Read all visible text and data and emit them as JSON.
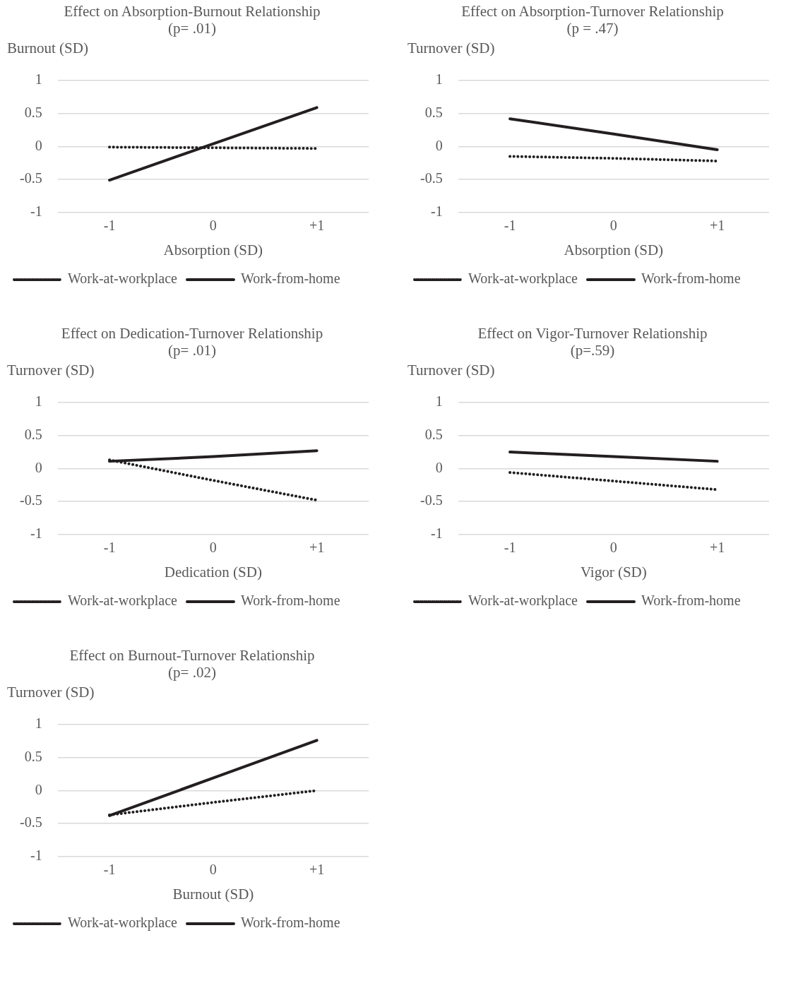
{
  "chart_data": [
    {
      "type": "line",
      "title": "Effect on Absorption-Burnout Relationship",
      "subtitle": "(p= .01)",
      "ylabel": "Burnout (SD)",
      "xlabel": "Absorption (SD)",
      "categories": [
        "-1",
        "0",
        "+1"
      ],
      "ylim": [
        -1,
        1
      ],
      "yticks": [
        -1,
        -0.5,
        0,
        0.5,
        1
      ],
      "grid": "y",
      "legend": "bottom",
      "marker": "none",
      "series": [
        {
          "name": "Work-at-workplace",
          "color": "#231f20",
          "line_style": "dotted",
          "values": [
            -0.01,
            -0.02,
            -0.03
          ]
        },
        {
          "name": "Work-from-home",
          "color": "#231f20",
          "line_style": "solid",
          "values": [
            -0.51,
            0.04,
            0.59
          ]
        }
      ]
    },
    {
      "type": "line",
      "title": "Effect on Absorption-Turnover Relationship",
      "subtitle": "(p = .47)",
      "ylabel": "Turnover (SD)",
      "xlabel": "Absorption (SD)",
      "categories": [
        "-1",
        "0",
        "+1"
      ],
      "ylim": [
        -1,
        1
      ],
      "yticks": [
        -1,
        -0.5,
        0,
        0.5,
        1
      ],
      "grid": "y",
      "legend": "bottom",
      "marker": "none",
      "series": [
        {
          "name": "Work-at-workplace",
          "color": "#231f20",
          "line_style": "dotted",
          "values": [
            -0.15,
            -0.18,
            -0.22
          ]
        },
        {
          "name": "Work-from-home",
          "color": "#231f20",
          "line_style": "solid",
          "values": [
            0.42,
            0.19,
            -0.05
          ]
        }
      ]
    },
    {
      "type": "line",
      "title": "Effect on Dedication-Turnover Relationship",
      "subtitle": "(p= .01)",
      "ylabel": "Turnover (SD)",
      "xlabel": "Dedication (SD)",
      "categories": [
        "-1",
        "0",
        "+1"
      ],
      "ylim": [
        -1,
        1
      ],
      "yticks": [
        -1,
        -0.5,
        0,
        0.5,
        1
      ],
      "grid": "y",
      "legend": "bottom",
      "marker": "none",
      "series": [
        {
          "name": "Work-at-workplace",
          "color": "#231f20",
          "line_style": "dotted",
          "values": [
            0.13,
            -0.18,
            -0.48
          ]
        },
        {
          "name": "Work-from-home",
          "color": "#231f20",
          "line_style": "solid",
          "values": [
            0.11,
            0.18,
            0.27
          ]
        }
      ]
    },
    {
      "type": "line",
      "title": "Effect on Vigor-Turnover Relationship",
      "subtitle": "(p=.59)",
      "ylabel": "Turnover (SD)",
      "xlabel": "Vigor (SD)",
      "categories": [
        "-1",
        "0",
        "+1"
      ],
      "ylim": [
        -1,
        1
      ],
      "yticks": [
        -1,
        -0.5,
        0,
        0.5,
        1
      ],
      "grid": "y",
      "legend": "bottom",
      "marker": "none",
      "series": [
        {
          "name": "Work-at-workplace",
          "color": "#231f20",
          "line_style": "dotted",
          "values": [
            -0.06,
            -0.19,
            -0.32
          ]
        },
        {
          "name": "Work-from-home",
          "color": "#231f20",
          "line_style": "solid",
          "values": [
            0.25,
            0.18,
            0.11
          ]
        }
      ]
    },
    {
      "type": "line",
      "title": "Effect on Burnout-Turnover Relationship",
      "subtitle": "(p= .02)",
      "ylabel": "Turnover (SD)",
      "xlabel": "Burnout (SD)",
      "categories": [
        "-1",
        "0",
        "+1"
      ],
      "ylim": [
        -1,
        1
      ],
      "yticks": [
        -1,
        -0.5,
        0,
        0.5,
        1
      ],
      "grid": "y",
      "legend": "bottom",
      "marker": "none",
      "series": [
        {
          "name": "Work-at-workplace",
          "color": "#231f20",
          "line_style": "dotted",
          "values": [
            -0.37,
            -0.18,
            0
          ]
        },
        {
          "name": "Work-from-home",
          "color": "#231f20",
          "line_style": "solid",
          "values": [
            -0.38,
            0.19,
            0.76
          ]
        }
      ]
    }
  ]
}
